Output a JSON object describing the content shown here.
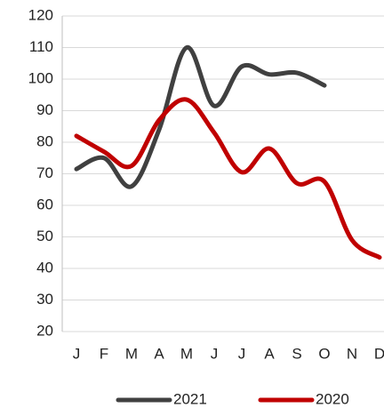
{
  "chart_data": {
    "type": "line",
    "categories": [
      "J",
      "F",
      "M",
      "A",
      "M",
      "J",
      "J",
      "A",
      "S",
      "O",
      "N",
      "D"
    ],
    "series": [
      {
        "name": "2021",
        "color": "#404040",
        "values": [
          71.5,
          75,
          66,
          84,
          110,
          91.5,
          104,
          101.5,
          102,
          98,
          null,
          null
        ]
      },
      {
        "name": "2020",
        "color": "#c00000",
        "values": [
          82,
          77,
          72.5,
          87,
          93.5,
          83,
          70.5,
          78,
          67,
          67.5,
          49,
          43.5
        ]
      }
    ],
    "ylim": [
      20,
      120
    ],
    "yticks": [
      20,
      30,
      40,
      50,
      60,
      70,
      80,
      90,
      100,
      110,
      120
    ],
    "grid": true,
    "smooth": true,
    "legend": "bottom"
  }
}
